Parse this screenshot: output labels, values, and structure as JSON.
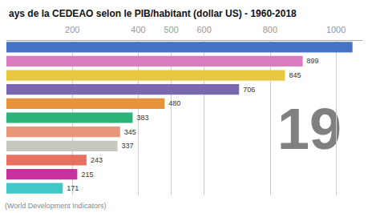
{
  "chart_data": {
    "type": "bar",
    "orientation": "horizontal",
    "title": "ays de la CEDEAO selon le PIB/habitant (dollar US) - 1960-2018",
    "subtitle": "(World Development Indicators)",
    "categories": [
      null,
      null,
      null,
      null,
      null,
      null,
      null,
      null,
      null,
      null,
      null
    ],
    "values": [
      1050,
      899,
      845,
      706,
      480,
      383,
      345,
      337,
      243,
      215,
      171
    ],
    "value_labels": [
      null,
      "899",
      "845",
      "706",
      "480",
      "383",
      "345",
      "337",
      "243",
      "215",
      "171"
    ],
    "colors": [
      "#4472c4",
      "#d87bbf",
      "#e8c840",
      "#7b68b0",
      "#e8943a",
      "#2db37a",
      "#e8957a",
      "#c8c8c0",
      "#e87060",
      "#c830a0",
      "#40c8c8"
    ],
    "data_labels": true,
    "xlim": [
      0,
      1080
    ],
    "xticks": [
      200,
      400,
      500,
      600,
      800,
      1000
    ],
    "grid": true,
    "tick_labels": "x",
    "annotations": [
      {
        "text": "19",
        "color": "#808080"
      }
    ]
  }
}
